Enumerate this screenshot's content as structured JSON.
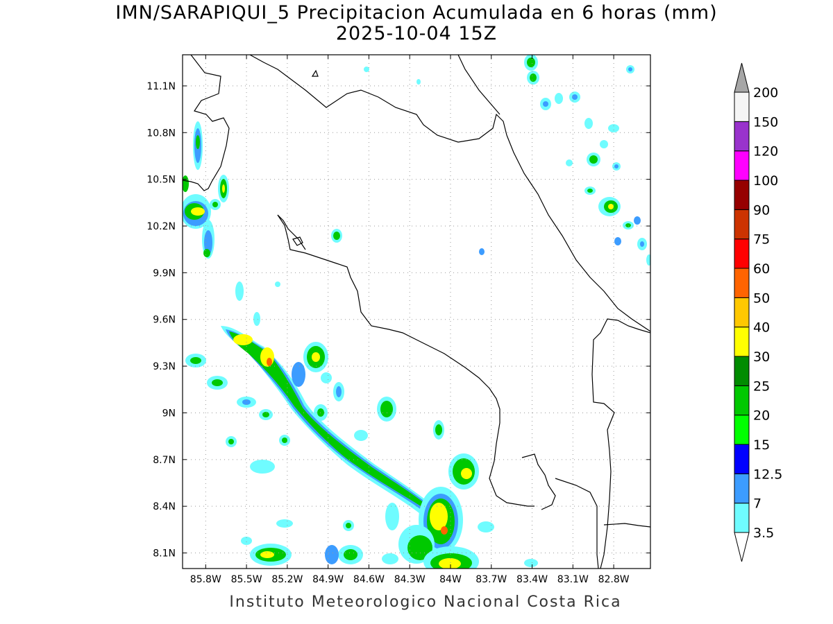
{
  "title": {
    "line1": "IMN/SARAPIQUI_5 Precipitacion Acumulada en 6 horas (mm)",
    "line2": "2025-10-04 15Z"
  },
  "credit": "Instituto Meteorologico Nacional Costa Rica",
  "map": {
    "region": "Costa Rica",
    "variable": "6-hour accumulated precipitation (mm)",
    "lon_range": [
      -85.97,
      -82.53
    ],
    "lat_range": [
      8.0,
      11.3
    ],
    "lon_ticks": [
      {
        "v": -85.8,
        "label": "85.8W"
      },
      {
        "v": -85.5,
        "label": "85.5W"
      },
      {
        "v": -85.2,
        "label": "85.2W"
      },
      {
        "v": -84.9,
        "label": "84.9W"
      },
      {
        "v": -84.6,
        "label": "84.6W"
      },
      {
        "v": -84.3,
        "label": "84.3W"
      },
      {
        "v": -84.0,
        "label": "84W"
      },
      {
        "v": -83.7,
        "label": "83.7W"
      },
      {
        "v": -83.4,
        "label": "83.4W"
      },
      {
        "v": -83.1,
        "label": "83.1W"
      },
      {
        "v": -82.8,
        "label": "82.8W"
      }
    ],
    "lat_ticks": [
      {
        "v": 8.1,
        "label": "8.1N"
      },
      {
        "v": 8.4,
        "label": "8.4N"
      },
      {
        "v": 8.7,
        "label": "8.7N"
      },
      {
        "v": 9.0,
        "label": "9N"
      },
      {
        "v": 9.3,
        "label": "9.3N"
      },
      {
        "v": 9.6,
        "label": "9.6N"
      },
      {
        "v": 9.9,
        "label": "9.9N"
      },
      {
        "v": 10.2,
        "label": "10.2N"
      },
      {
        "v": 10.5,
        "label": "10.5N"
      },
      {
        "v": 10.8,
        "label": "10.8N"
      },
      {
        "v": 11.1,
        "label": "11.1N"
      }
    ],
    "grid": true
  },
  "colorbar": {
    "levels": [
      "3.5",
      "7",
      "12.5",
      "15",
      "20",
      "25",
      "30",
      "40",
      "50",
      "60",
      "75",
      "90",
      "100",
      "120",
      "150",
      "200"
    ],
    "colors": [
      "#6ffcff",
      "#3c9cff",
      "#0000ff",
      "#00ff00",
      "#00c800",
      "#008c00",
      "#ffff00",
      "#ffc800",
      "#ff6400",
      "#ff0000",
      "#cc3300",
      "#960000",
      "#ff00ff",
      "#9933cc",
      "#f5f5f5"
    ],
    "under_color": "#ffffff",
    "over_color": "#a6a6a6"
  }
}
